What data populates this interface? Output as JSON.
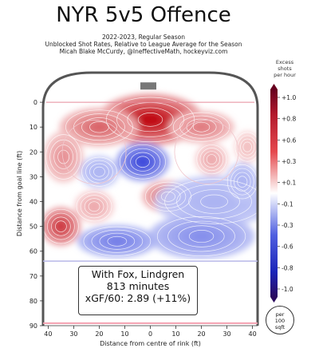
{
  "title": "NYR 5v5 Offence",
  "subtitle_lines": [
    "2022-2023, Regular Season",
    "Unblocked Shot Rates, Relative to League Average for the Season",
    "Micah Blake McCurdy, @IneffectiveMath, hockeyviz.com"
  ],
  "annotation": {
    "line1": "With Fox, Lindgren",
    "line2": "813 minutes",
    "line3": "xGF/60: 2.89 (+11%)"
  },
  "colorbar": {
    "title_lines": [
      "Excess",
      "shots",
      "per hour"
    ],
    "tick_labels": [
      "+1.0",
      "+0.8",
      "+0.6",
      "+0.3",
      "+0.1",
      "-0.1",
      "-0.3",
      "-0.6",
      "-0.8",
      "-1.0"
    ],
    "unit_lines": [
      "per",
      "100",
      "sqft"
    ]
  },
  "colors": {
    "positive": "#c8102e",
    "negative": "#2233cc",
    "rink_line": "#555555"
  },
  "chart_data": {
    "type": "heatmap",
    "title": "NYR 5v5 Offence",
    "xlabel": "Distance from centre of rink (ft)",
    "ylabel": "Distance from goal line (ft)",
    "xlim": [
      42,
      -42
    ],
    "ylim": [
      -10,
      90
    ],
    "x_ticks": [
      40,
      30,
      20,
      10,
      0,
      10,
      20,
      30,
      40
    ],
    "y_ticks": [
      0,
      10,
      20,
      30,
      40,
      50,
      60,
      70,
      80,
      90
    ],
    "value_range": [
      -1.0,
      1.0
    ],
    "blobs": [
      {
        "x": 0,
        "y": 7,
        "value": 1.0,
        "rx": 16,
        "ry": 8
      },
      {
        "x": 20,
        "y": 10,
        "value": 0.6,
        "rx": 12,
        "ry": 6
      },
      {
        "x": -20,
        "y": 10,
        "value": 0.5,
        "rx": 10,
        "ry": 5
      },
      {
        "x": 34,
        "y": 22,
        "value": 0.4,
        "rx": 6,
        "ry": 8
      },
      {
        "x": -24,
        "y": 23,
        "value": 0.3,
        "rx": 5,
        "ry": 5
      },
      {
        "x": -38,
        "y": 18,
        "value": 0.2,
        "rx": 4,
        "ry": 5
      },
      {
        "x": 3,
        "y": 24,
        "value": -0.8,
        "rx": 8,
        "ry": 6
      },
      {
        "x": -7,
        "y": 38,
        "value": 0.6,
        "rx": 8,
        "ry": 5
      },
      {
        "x": 35,
        "y": 50,
        "value": 0.8,
        "rx": 6,
        "ry": 6
      },
      {
        "x": 22,
        "y": 42,
        "value": 0.3,
        "rx": 6,
        "ry": 5
      },
      {
        "x": -25,
        "y": 40,
        "value": -0.2,
        "rx": 18,
        "ry": 8
      },
      {
        "x": -20,
        "y": 54,
        "value": -0.4,
        "rx": 16,
        "ry": 7
      },
      {
        "x": 13,
        "y": 56,
        "value": -0.5,
        "rx": 12,
        "ry": 5
      },
      {
        "x": -36,
        "y": 32,
        "value": -0.2,
        "rx": 5,
        "ry": 6
      },
      {
        "x": 20,
        "y": 28,
        "value": -0.2,
        "rx": 6,
        "ry": 5
      }
    ]
  }
}
